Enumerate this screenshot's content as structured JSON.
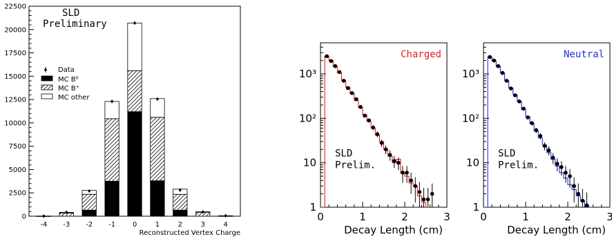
{
  "chart_data": [
    {
      "type": "bar",
      "stacked": true,
      "categories": [
        "-4",
        "-3",
        "-2",
        "-1",
        "0",
        "1",
        "2",
        "3",
        "4"
      ],
      "series": [
        {
          "name": "MC B⁰",
          "fill": "black",
          "values": [
            0,
            0,
            650,
            3750,
            11200,
            3800,
            650,
            0,
            0
          ]
        },
        {
          "name": "MC B⁺",
          "fill": "hatched",
          "values": [
            10,
            350,
            1700,
            6700,
            4400,
            6800,
            1700,
            400,
            20
          ]
        },
        {
          "name": "MC other",
          "fill": "white",
          "values": [
            10,
            60,
            420,
            1850,
            5100,
            2000,
            550,
            80,
            30
          ]
        }
      ],
      "data_points": {
        "name": "Data",
        "values": [
          10,
          420,
          2700,
          12300,
          20700,
          12550,
          2800,
          450,
          50
        ]
      },
      "annotations": [
        "SLD",
        "Preliminary"
      ],
      "xlabel": "Reconstructed Vertex Charge",
      "ylabel": "",
      "ylim": [
        0,
        22500
      ],
      "yticks": [
        "0",
        "2500",
        "5000",
        "7500",
        "10000",
        "12500",
        "15000",
        "17500",
        "20000",
        "22500"
      ],
      "legend_position": "middle-left",
      "grid": false
    },
    {
      "type": "line",
      "title": "Charged",
      "title_color": "#e02020",
      "xlabel": "Decay Length (cm)",
      "xlim": [
        0,
        3
      ],
      "ylim": [
        1,
        5000
      ],
      "yscale": "log",
      "xticks": [
        "0",
        "1",
        "2",
        "3"
      ],
      "yticks": [
        "1",
        "10",
        "10²",
        "10³"
      ],
      "annotations": [
        "SLD",
        "Prelim."
      ],
      "series": [
        {
          "kind": "mc-histogram",
          "color": "#e02020",
          "x": [
            0.05,
            0.15,
            0.25,
            0.35,
            0.45,
            0.55,
            0.65,
            0.75,
            0.85,
            0.95,
            1.05,
            1.15,
            1.25,
            1.35,
            1.45,
            1.55,
            1.65,
            1.75,
            1.85,
            1.95,
            2.05,
            2.15,
            2.25,
            2.35,
            2.45,
            2.55
          ],
          "values": [
            1,
            2500,
            2000,
            1450,
            1050,
            720,
            500,
            360,
            250,
            175,
            120,
            85,
            60,
            42,
            30,
            20,
            14,
            10,
            12,
            6,
            5,
            3.5,
            3,
            1.8,
            1.3,
            1
          ]
        },
        {
          "kind": "data-points",
          "color": "#000000",
          "x": [
            0.15,
            0.25,
            0.35,
            0.45,
            0.55,
            0.65,
            0.75,
            0.85,
            0.95,
            1.05,
            1.15,
            1.25,
            1.35,
            1.45,
            1.55,
            1.65,
            1.75,
            1.85,
            1.95,
            2.05,
            2.15,
            2.25,
            2.35,
            2.45,
            2.55,
            2.65
          ],
          "values": [
            2500,
            1950,
            1500,
            1100,
            700,
            480,
            370,
            270,
            180,
            115,
            90,
            62,
            44,
            28,
            20,
            15,
            11,
            10,
            6,
            6,
            4,
            3,
            2.2,
            1.5,
            1.5,
            2
          ]
        }
      ]
    },
    {
      "type": "line",
      "title": "Neutral",
      "title_color": "#2030e0",
      "xlabel": "Decay Length (cm)",
      "xlim": [
        0,
        3
      ],
      "ylim": [
        1,
        5000
      ],
      "yscale": "log",
      "xticks": [
        "0",
        "1",
        "2",
        "3"
      ],
      "yticks": [
        "1",
        "10",
        "10²",
        "10³"
      ],
      "annotations": [
        "SLD",
        "Prelim."
      ],
      "series": [
        {
          "kind": "mc-histogram",
          "color": "#2030e0",
          "x": [
            0.05,
            0.15,
            0.25,
            0.35,
            0.45,
            0.55,
            0.65,
            0.75,
            0.85,
            0.95,
            1.05,
            1.15,
            1.25,
            1.35,
            1.45,
            1.55,
            1.65,
            1.75,
            1.85,
            1.95,
            2.05,
            2.15,
            2.25,
            2.35,
            2.45,
            2.55
          ],
          "values": [
            1,
            2400,
            1950,
            1450,
            1050,
            700,
            480,
            340,
            240,
            160,
            110,
            76,
            52,
            36,
            25,
            17,
            12,
            8.5,
            6,
            4.5,
            3.2,
            2.5,
            1.8,
            1.4,
            1.1,
            1
          ]
        },
        {
          "kind": "data-points",
          "color": "#000000",
          "x": [
            0.15,
            0.25,
            0.35,
            0.45,
            0.55,
            0.65,
            0.75,
            0.85,
            0.95,
            1.05,
            1.15,
            1.25,
            1.35,
            1.45,
            1.55,
            1.65,
            1.75,
            1.85,
            1.95,
            2.05,
            2.15,
            2.25,
            2.35,
            2.45
          ],
          "values": [
            2400,
            2000,
            1500,
            1050,
            700,
            470,
            330,
            240,
            165,
            105,
            78,
            54,
            40,
            24,
            19,
            13,
            9.5,
            8,
            6,
            5,
            3,
            2,
            1.4,
            1.1
          ]
        }
      ]
    }
  ]
}
